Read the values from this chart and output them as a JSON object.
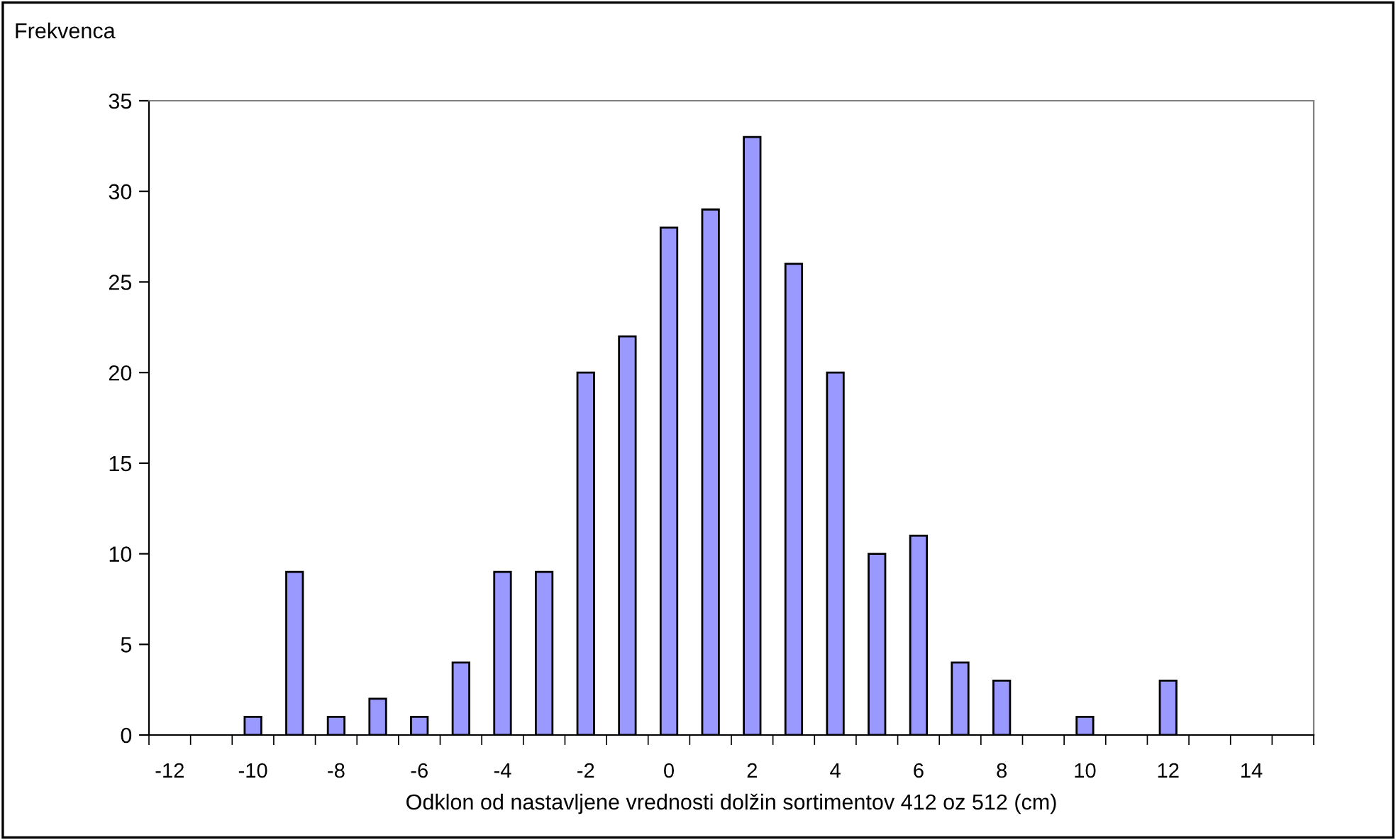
{
  "chart_data": {
    "type": "bar",
    "ylabel": "Frekvenca",
    "xlabel": "Odklon od nastavljene vrednosti dolžin sortimentov 412 oz 512 (cm)",
    "categories": [
      "-12",
      null,
      "-10",
      null,
      "-8",
      null,
      "-6",
      null,
      "-4",
      null,
      "-2",
      null,
      "0",
      null,
      "2",
      null,
      "4",
      null,
      "6",
      null,
      "8",
      null,
      "10",
      null,
      "12",
      null,
      "14",
      null
    ],
    "values": [
      0,
      0,
      1,
      9,
      1,
      2,
      1,
      4,
      9,
      9,
      20,
      22,
      28,
      29,
      33,
      26,
      20,
      10,
      11,
      4,
      3,
      0,
      1,
      0,
      3,
      0,
      0,
      0
    ],
    "color": "#9999ff",
    "ylim": [
      0,
      35
    ],
    "yticks": [
      0,
      5,
      10,
      15,
      20,
      25,
      30,
      35
    ],
    "grid": false,
    "legend": false
  }
}
